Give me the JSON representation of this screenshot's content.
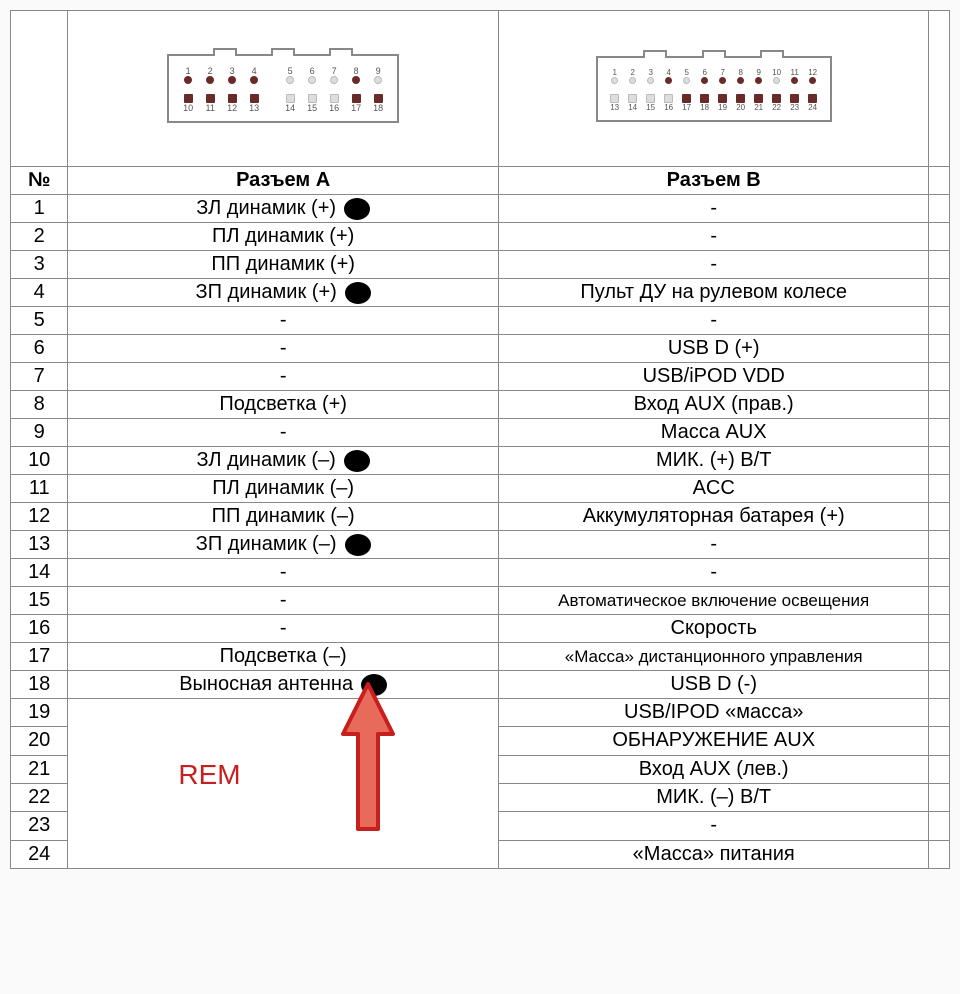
{
  "headers": {
    "num": "№",
    "a": "Разъем А",
    "b": "Разъем B"
  },
  "connectors": {
    "a": {
      "top": [
        {
          "n": "1",
          "on": true
        },
        {
          "n": "2",
          "on": true
        },
        {
          "n": "3",
          "on": true
        },
        {
          "n": "4",
          "on": true
        },
        {
          "gap": true
        },
        {
          "n": "5",
          "on": false
        },
        {
          "n": "6",
          "on": false
        },
        {
          "n": "7",
          "on": false
        },
        {
          "n": "8",
          "on": true
        },
        {
          "n": "9",
          "on": false
        }
      ],
      "bottom": [
        {
          "n": "10",
          "on": true
        },
        {
          "n": "11",
          "on": true
        },
        {
          "n": "12",
          "on": true
        },
        {
          "n": "13",
          "on": true
        },
        {
          "gap": true
        },
        {
          "n": "14",
          "on": false
        },
        {
          "n": "15",
          "on": false
        },
        {
          "n": "16",
          "on": false
        },
        {
          "n": "17",
          "on": true
        },
        {
          "n": "18",
          "on": true
        }
      ]
    },
    "b": {
      "top": [
        {
          "n": "1",
          "on": false
        },
        {
          "n": "2",
          "on": false
        },
        {
          "n": "3",
          "on": false
        },
        {
          "n": "4",
          "on": true
        },
        {
          "n": "5",
          "on": false
        },
        {
          "n": "6",
          "on": true
        },
        {
          "n": "7",
          "on": true
        },
        {
          "n": "8",
          "on": true
        },
        {
          "n": "9",
          "on": true
        },
        {
          "n": "10",
          "on": false
        },
        {
          "n": "11",
          "on": true
        },
        {
          "n": "12",
          "on": true
        }
      ],
      "bottom": [
        {
          "n": "13",
          "on": false
        },
        {
          "n": "14",
          "on": false
        },
        {
          "n": "15",
          "on": false
        },
        {
          "n": "16",
          "on": false
        },
        {
          "n": "17",
          "on": true
        },
        {
          "n": "18",
          "on": true
        },
        {
          "n": "19",
          "on": true
        },
        {
          "n": "20",
          "on": true
        },
        {
          "n": "21",
          "on": true
        },
        {
          "n": "22",
          "on": true
        },
        {
          "n": "23",
          "on": true
        },
        {
          "n": "24",
          "on": true
        }
      ]
    }
  },
  "rows": [
    {
      "n": "1",
      "a": "ЗЛ динамик (+)",
      "mark": true,
      "b": "-"
    },
    {
      "n": "2",
      "a": "ПЛ динамик (+)",
      "mark": false,
      "b": "-"
    },
    {
      "n": "3",
      "a": "ПП динамик (+)",
      "mark": false,
      "b": "-"
    },
    {
      "n": "4",
      "a": "ЗП динамик (+)",
      "mark": true,
      "b": "Пульт ДУ на рулевом колесе"
    },
    {
      "n": "5",
      "a": "-",
      "mark": false,
      "b": "-"
    },
    {
      "n": "6",
      "a": "-",
      "mark": false,
      "b": "USB D (+)"
    },
    {
      "n": "7",
      "a": "-",
      "mark": false,
      "b": "USB/iPOD VDD"
    },
    {
      "n": "8",
      "a": "Подсветка (+)",
      "mark": false,
      "b": "Вход AUX (прав.)"
    },
    {
      "n": "9",
      "a": "-",
      "mark": false,
      "b": "Масса AUX"
    },
    {
      "n": "10",
      "a": "ЗЛ динамик (–)",
      "mark": true,
      "b": "МИК. (+) B/T"
    },
    {
      "n": "11",
      "a": "ПЛ динамик (–)",
      "mark": false,
      "b": "ACC"
    },
    {
      "n": "12",
      "a": "ПП динамик (–)",
      "mark": false,
      "b": "Аккумуляторная батарея (+)"
    },
    {
      "n": "13",
      "a": "ЗП динамик (–)",
      "mark": true,
      "b": "-"
    },
    {
      "n": "14",
      "a": "-",
      "mark": false,
      "b": "-"
    },
    {
      "n": "15",
      "a": "-",
      "mark": false,
      "b": "Автоматическое включение освещения",
      "bsmall": true
    },
    {
      "n": "16",
      "a": "-",
      "mark": false,
      "b": "Скорость"
    },
    {
      "n": "17",
      "a": "Подсветка (–)",
      "mark": false,
      "b": "«Масса» дистанционного управления",
      "bsmall": true
    },
    {
      "n": "18",
      "a": "Выносная антенна",
      "mark": true,
      "b": "USB D (-)"
    }
  ],
  "tailrows": [
    {
      "n": "19",
      "b": "USB/IPOD «масса»"
    },
    {
      "n": "20",
      "b": "ОБНАРУЖЕНИЕ AUX"
    },
    {
      "n": "21",
      "b": "Вход AUX (лев.)"
    },
    {
      "n": "22",
      "b": "МИК. (–) B/T"
    },
    {
      "n": "23",
      "b": "-"
    },
    {
      "n": "24",
      "b": "«Масса» питания"
    }
  ],
  "annotation": {
    "rem": "REM",
    "arrow_color": "#c91e1e"
  },
  "colors": {
    "border": "#888888",
    "pin_on": "#6b2a2a",
    "pin_off": "#dddddd",
    "marker": "#000000",
    "background": "#ffffff"
  }
}
